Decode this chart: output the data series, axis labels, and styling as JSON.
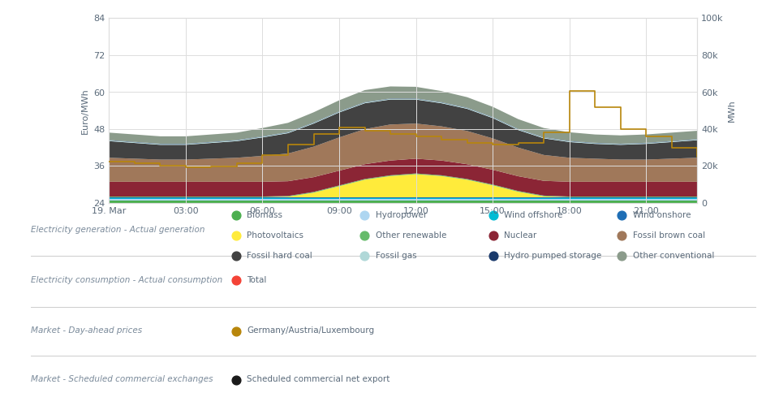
{
  "xlabel_left": "Euro/MWh",
  "xlabel_right": "MWh",
  "x_ticks_labels": [
    "19. Mar",
    "03:00",
    "06:00",
    "09:00",
    "12:00",
    "15:00",
    "18:00",
    "21:00"
  ],
  "ylim_left": [
    24,
    84
  ],
  "ylim_right": [
    0,
    100000
  ],
  "yticks_left": [
    24,
    36,
    48,
    60,
    72,
    84
  ],
  "yticks_right": [
    0,
    20000,
    40000,
    60000,
    80000,
    100000
  ],
  "yticks_right_labels": [
    "0",
    "20k",
    "40k",
    "60k",
    "80k",
    "100k"
  ],
  "hours": [
    0,
    1,
    2,
    3,
    4,
    5,
    6,
    7,
    8,
    9,
    10,
    11,
    12,
    13,
    14,
    15,
    16,
    17,
    18,
    19,
    20,
    21,
    22,
    23
  ],
  "layers": {
    "Biomass": [
      1400,
      1400,
      1400,
      1400,
      1400,
      1400,
      1400,
      1400,
      1400,
      1400,
      1400,
      1400,
      1400,
      1400,
      1400,
      1400,
      1400,
      1400,
      1400,
      1400,
      1400,
      1400,
      1400,
      1400
    ],
    "Hydropower": [
      800,
      800,
      800,
      800,
      800,
      800,
      800,
      800,
      800,
      800,
      800,
      800,
      800,
      800,
      800,
      800,
      800,
      800,
      800,
      800,
      800,
      800,
      800,
      800
    ],
    "Wind offshore": [
      600,
      600,
      600,
      600,
      600,
      600,
      600,
      600,
      600,
      600,
      600,
      600,
      600,
      600,
      600,
      600,
      600,
      600,
      600,
      600,
      600,
      600,
      600,
      600
    ],
    "Wind onshore": [
      300,
      300,
      300,
      300,
      300,
      300,
      300,
      300,
      300,
      300,
      300,
      300,
      300,
      300,
      300,
      300,
      300,
      300,
      300,
      300,
      300,
      300,
      300,
      300
    ],
    "Photovoltaics": [
      0,
      0,
      0,
      0,
      0,
      0,
      0,
      300,
      2500,
      6000,
      9500,
      11500,
      12500,
      11500,
      9500,
      6500,
      3000,
      500,
      0,
      0,
      0,
      0,
      0,
      0
    ],
    "Other renewable": [
      400,
      400,
      400,
      400,
      400,
      400,
      400,
      400,
      400,
      400,
      400,
      400,
      400,
      400,
      400,
      400,
      400,
      400,
      400,
      400,
      400,
      400,
      400,
      400
    ],
    "Nuclear": [
      8000,
      8000,
      8000,
      8000,
      8000,
      8000,
      8000,
      8000,
      8000,
      8000,
      8000,
      8000,
      8000,
      8000,
      8000,
      8000,
      8000,
      8000,
      8000,
      8000,
      8000,
      8000,
      8000,
      8000
    ],
    "Fossil brown coal": [
      13000,
      12500,
      12000,
      12000,
      12500,
      13000,
      14000,
      15000,
      16500,
      18000,
      19000,
      19500,
      19000,
      18500,
      18000,
      17000,
      15500,
      14000,
      13000,
      12500,
      12000,
      12000,
      12500,
      13000
    ],
    "Fossil hard coal": [
      9000,
      8500,
      8000,
      8000,
      8500,
      9000,
      10000,
      11000,
      12500,
      13500,
      14000,
      13500,
      13000,
      12500,
      12000,
      11000,
      9500,
      9000,
      8500,
      8000,
      8000,
      8500,
      9000,
      9500
    ],
    "Fossil gas": [
      400,
      400,
      400,
      400,
      400,
      400,
      400,
      400,
      400,
      400,
      400,
      400,
      400,
      400,
      400,
      400,
      400,
      400,
      400,
      400,
      400,
      400,
      400,
      400
    ],
    "Hydro pumped storage": [
      200,
      200,
      200,
      200,
      200,
      200,
      200,
      200,
      200,
      200,
      200,
      200,
      200,
      200,
      200,
      200,
      200,
      200,
      200,
      200,
      200,
      200,
      200,
      200
    ],
    "Other conventional": [
      4000,
      4000,
      4000,
      4000,
      4000,
      4000,
      4500,
      5000,
      5500,
      6000,
      6500,
      6500,
      6300,
      6000,
      5700,
      5500,
      5300,
      5000,
      4700,
      4500,
      4500,
      4500,
      4500,
      4500
    ]
  },
  "layer_colors": {
    "Biomass": "#4caf50",
    "Hydropower": "#aed6f1",
    "Wind offshore": "#00bcd4",
    "Wind onshore": "#1e6eb5",
    "Photovoltaics": "#ffeb3b",
    "Other renewable": "#66bb6a",
    "Nuclear": "#8b2535",
    "Fossil brown coal": "#a0785a",
    "Fossil hard coal": "#424242",
    "Fossil gas": "#b0d8d8",
    "Hydro pumped storage": "#1a3a6b",
    "Other conventional": "#8b9b8b"
  },
  "price_hours": [
    0,
    1,
    2,
    3,
    4,
    5,
    6,
    7,
    8,
    9,
    10,
    11,
    12,
    13,
    14,
    15,
    16,
    17,
    18,
    19,
    20,
    21,
    22,
    23
  ],
  "price_values": [
    37.5,
    36.8,
    36.0,
    35.5,
    35.8,
    37.0,
    39.5,
    43.0,
    46.5,
    48.5,
    47.5,
    46.5,
    45.5,
    44.5,
    43.5,
    43.0,
    43.5,
    47.0,
    60.5,
    55.0,
    48.0,
    45.5,
    42.0,
    39.0
  ],
  "background_color": "#ffffff",
  "grid_color": "#dddddd",
  "legend_categories": {
    "Electricity generation - Actual generation": {
      "Biomass": "#4caf50",
      "Hydropower": "#aed6f1",
      "Wind offshore": "#00bcd4",
      "Wind onshore": "#1e6eb5",
      "Photovoltaics": "#ffeb3b",
      "Other renewable": "#66bb6a",
      "Nuclear": "#8b2535",
      "Fossil brown coal": "#a0785a",
      "Fossil hard coal": "#424242",
      "Fossil gas": "#b0d8d8",
      "Hydro pumped storage": "#1a3a6b",
      "Other conventional": "#8b9b8b"
    },
    "Electricity consumption - Actual consumption": {
      "Total": "#f44336"
    },
    "Market - Day-ahead prices": {
      "Germany/Austria/Luxembourg": "#b8860b"
    },
    "Market - Scheduled commercial exchanges": {
      "Scheduled commercial net export": "#1a1a1a"
    }
  },
  "text_color": "#5a6a7a",
  "section_label_color": "#7a8a9a"
}
